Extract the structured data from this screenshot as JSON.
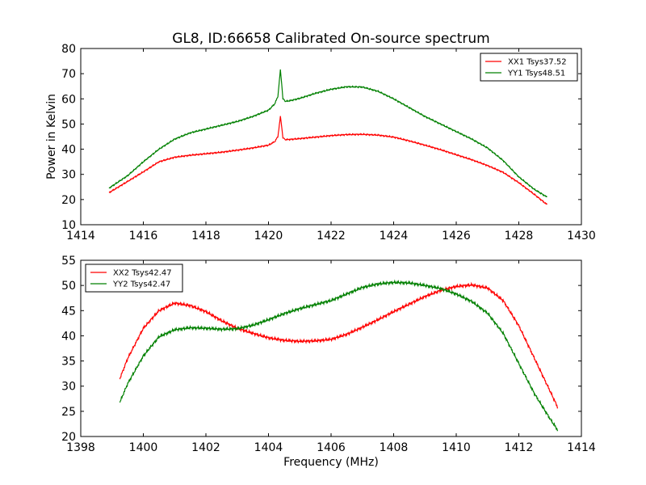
{
  "figure": {
    "title": "GL8, ID:66658 Calibrated On-source spectrum"
  },
  "chart_data": [
    {
      "type": "line",
      "xlabel": "",
      "ylabel": "Power in Kelvin",
      "xlim": [
        1414,
        1430
      ],
      "ylim": [
        10,
        80
      ],
      "xticks": [
        1414,
        1416,
        1418,
        1420,
        1422,
        1424,
        1426,
        1428,
        1430
      ],
      "yticks": [
        10,
        20,
        30,
        40,
        50,
        60,
        70,
        80
      ],
      "legend_position": "upper right",
      "series": [
        {
          "name": "XX1 Tsys37.52",
          "color": "#ff0000",
          "x": [
            1414.9,
            1415.5,
            1416.0,
            1416.5,
            1417.0,
            1417.5,
            1418.0,
            1418.5,
            1419.0,
            1419.5,
            1420.0,
            1420.2,
            1420.3,
            1420.38,
            1420.42,
            1420.46,
            1420.55,
            1420.7,
            1421.0,
            1421.5,
            1422.0,
            1422.5,
            1423.0,
            1423.5,
            1424.0,
            1424.5,
            1425.0,
            1425.5,
            1426.0,
            1426.5,
            1427.0,
            1427.5,
            1428.0,
            1428.5,
            1428.9
          ],
          "y": [
            22.7,
            27.2,
            31.0,
            35.0,
            36.8,
            37.6,
            38.2,
            38.8,
            39.6,
            40.5,
            41.6,
            43.0,
            45.0,
            53.0,
            49.0,
            44.5,
            43.8,
            43.9,
            44.2,
            44.8,
            45.4,
            45.8,
            45.9,
            45.6,
            44.8,
            43.3,
            41.6,
            39.8,
            37.8,
            35.8,
            33.5,
            30.8,
            26.7,
            22.0,
            18.0
          ]
        },
        {
          "name": "YY1 Tsys48.51",
          "color": "#008000",
          "x": [
            1414.9,
            1415.5,
            1416.0,
            1416.5,
            1417.0,
            1417.5,
            1418.0,
            1418.5,
            1419.0,
            1419.5,
            1420.0,
            1420.2,
            1420.3,
            1420.38,
            1420.42,
            1420.46,
            1420.55,
            1420.7,
            1421.0,
            1421.5,
            1422.0,
            1422.5,
            1423.0,
            1423.5,
            1424.0,
            1424.5,
            1425.0,
            1425.5,
            1426.0,
            1426.5,
            1427.0,
            1427.5,
            1428.0,
            1428.5,
            1428.9
          ],
          "y": [
            24.5,
            29.5,
            35.0,
            40.0,
            44.0,
            46.5,
            48.0,
            49.5,
            51.0,
            53.0,
            55.5,
            58.0,
            61.0,
            71.5,
            66.0,
            60.0,
            59.0,
            59.3,
            60.2,
            62.2,
            63.8,
            64.8,
            64.7,
            63.0,
            60.0,
            56.5,
            53.0,
            50.0,
            47.0,
            44.0,
            40.5,
            35.5,
            29.0,
            24.0,
            21.0
          ]
        }
      ]
    },
    {
      "type": "line",
      "xlabel": "Frequency (MHz)",
      "ylabel": "",
      "xlim": [
        1398,
        1414
      ],
      "ylim": [
        20,
        55
      ],
      "xticks": [
        1398,
        1400,
        1402,
        1404,
        1406,
        1408,
        1410,
        1412,
        1414
      ],
      "yticks": [
        20,
        25,
        30,
        35,
        40,
        45,
        50,
        55
      ],
      "legend_position": "upper left",
      "series": [
        {
          "name": "XX2 Tsys42.47",
          "color": "#ff0000",
          "x": [
            1399.25,
            1399.5,
            1400.0,
            1400.5,
            1401.0,
            1401.5,
            1402.0,
            1402.5,
            1403.0,
            1403.5,
            1404.0,
            1404.5,
            1405.0,
            1405.5,
            1406.0,
            1406.5,
            1407.0,
            1407.5,
            1408.0,
            1408.5,
            1409.0,
            1409.5,
            1410.0,
            1410.5,
            1411.0,
            1411.5,
            1412.0,
            1412.5,
            1413.0,
            1413.25
          ],
          "y": [
            31.5,
            35.5,
            41.5,
            45.0,
            46.5,
            46.0,
            44.8,
            43.0,
            41.5,
            40.5,
            39.6,
            39.1,
            38.9,
            39.0,
            39.3,
            40.3,
            41.7,
            43.2,
            44.8,
            46.3,
            47.8,
            49.0,
            49.8,
            50.1,
            49.5,
            47.0,
            42.0,
            35.5,
            29.0,
            25.7
          ]
        },
        {
          "name": "YY2 Tsys42.47",
          "color": "#008000",
          "x": [
            1399.25,
            1399.5,
            1400.0,
            1400.5,
            1401.0,
            1401.5,
            1402.0,
            1402.5,
            1403.0,
            1403.5,
            1404.0,
            1404.5,
            1405.0,
            1405.5,
            1406.0,
            1406.5,
            1407.0,
            1407.5,
            1408.0,
            1408.5,
            1409.0,
            1409.5,
            1410.0,
            1410.5,
            1411.0,
            1411.5,
            1412.0,
            1412.5,
            1413.0,
            1413.25
          ],
          "y": [
            26.8,
            30.5,
            36.0,
            39.8,
            41.2,
            41.6,
            41.5,
            41.3,
            41.4,
            42.1,
            43.2,
            44.4,
            45.4,
            46.2,
            47.0,
            48.3,
            49.6,
            50.3,
            50.6,
            50.5,
            50.0,
            49.4,
            48.3,
            46.8,
            44.5,
            40.5,
            34.5,
            28.5,
            23.5,
            21.2
          ]
        }
      ]
    }
  ]
}
